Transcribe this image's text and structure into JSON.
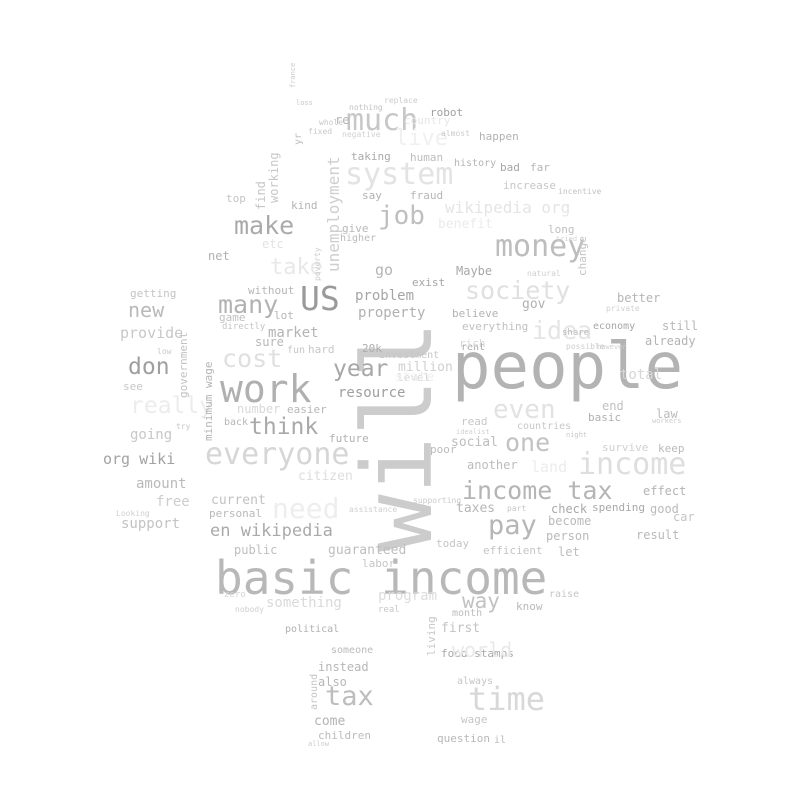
{
  "wordcloud": {
    "words": [
      {
        "text": "will",
        "color": "#cccccc"
      },
      {
        "text": "people",
        "color": "#b3b3b3"
      },
      {
        "text": "basic income",
        "color": "#b8b8b8"
      },
      {
        "text": "work",
        "color": "#b0b0b0"
      },
      {
        "text": "everyone",
        "color": "#d6d6d6"
      },
      {
        "text": "money",
        "color": "#bdbdbd"
      },
      {
        "text": "income tax",
        "color": "#b5b5b5"
      },
      {
        "text": "income",
        "color": "#dedede"
      },
      {
        "text": "US",
        "color": "#9a9a9a"
      },
      {
        "text": "time",
        "color": "#d8d8d8"
      },
      {
        "text": "much",
        "color": "#c7c7c7"
      },
      {
        "text": "system",
        "color": "#e3e3e3"
      },
      {
        "text": "job",
        "color": "#bfbfbf"
      },
      {
        "text": "make",
        "color": "#aaaaaa"
      },
      {
        "text": "many",
        "color": "#b2b2b2"
      },
      {
        "text": "don",
        "color": "#9f9f9f"
      },
      {
        "text": "cost",
        "color": "#e0e0e0"
      },
      {
        "text": "think",
        "color": "#a9a9a9"
      },
      {
        "text": "society",
        "color": "#e0e0e0"
      },
      {
        "text": "idea",
        "color": "#e5e5e5"
      },
      {
        "text": "one",
        "color": "#c2c2c2"
      },
      {
        "text": "even",
        "color": "#e2e2e2"
      },
      {
        "text": "pay",
        "color": "#b6b6b6"
      },
      {
        "text": "year",
        "color": "#a7a7a7"
      },
      {
        "text": "tax",
        "color": "#bdbdbd"
      },
      {
        "text": "need",
        "color": "#eeeeee"
      },
      {
        "text": "really",
        "color": "#ececec"
      },
      {
        "text": "new",
        "color": "#b9b9b9"
      },
      {
        "text": "take",
        "color": "#e8e8e8"
      },
      {
        "text": "en wikipedia",
        "color": "#aaaaaa"
      },
      {
        "text": "way",
        "color": "#c2c2c2"
      },
      {
        "text": "wikipedia org",
        "color": "#e5e5e5"
      },
      {
        "text": "unemployment",
        "color": "#cfcfcf"
      },
      {
        "text": "live",
        "color": "#f0f0f0"
      },
      {
        "text": "problem",
        "color": "#a5a5a5"
      },
      {
        "text": "property",
        "color": "#b0b0b0"
      },
      {
        "text": "market",
        "color": "#b4b4b4"
      },
      {
        "text": "resource",
        "color": "#9f9f9f"
      },
      {
        "text": "org wiki",
        "color": "#a3a3a3"
      },
      {
        "text": "provide",
        "color": "#c8c8c8"
      },
      {
        "text": "going",
        "color": "#c7c7c7"
      },
      {
        "text": "amount",
        "color": "#bababa"
      },
      {
        "text": "free",
        "color": "#cdcdcd"
      },
      {
        "text": "support",
        "color": "#c3c3c3"
      },
      {
        "text": "current",
        "color": "#c2c2c2"
      },
      {
        "text": "personal",
        "color": "#b9b9b9"
      },
      {
        "text": "public",
        "color": "#bebebe"
      },
      {
        "text": "guaranteed",
        "color": "#bebebe"
      },
      {
        "text": "labor",
        "color": "#c6c6c6"
      },
      {
        "text": "something",
        "color": "#dadada"
      },
      {
        "text": "program",
        "color": "#dcdcdc"
      },
      {
        "text": "citizen",
        "color": "#dddddd"
      },
      {
        "text": "social",
        "color": "#bdbdbd"
      },
      {
        "text": "another",
        "color": "#bcbcbc"
      },
      {
        "text": "taxes",
        "color": "#b6b6b6"
      },
      {
        "text": "today",
        "color": "#c6c6c6"
      },
      {
        "text": "efficient",
        "color": "#c5c5c5"
      },
      {
        "text": "let",
        "color": "#bdbdbd"
      },
      {
        "text": "person",
        "color": "#b9b9b9"
      },
      {
        "text": "become",
        "color": "#bababa"
      },
      {
        "text": "check",
        "color": "#a9a9a9"
      },
      {
        "text": "spending",
        "color": "#a8a8a8"
      },
      {
        "text": "good",
        "color": "#bbbbbb"
      },
      {
        "text": "effect",
        "color": "#b4b4b4"
      },
      {
        "text": "car",
        "color": "#c5c5c5"
      },
      {
        "text": "result",
        "color": "#b9b9b9"
      },
      {
        "text": "basic",
        "color": "#b0b0b0"
      },
      {
        "text": "end",
        "color": "#c0c0c0"
      },
      {
        "text": "law",
        "color": "#bcbcbc"
      },
      {
        "text": "survive",
        "color": "#d0d0d0"
      },
      {
        "text": "keep",
        "color": "#bababa"
      },
      {
        "text": "already",
        "color": "#b3b3b3"
      },
      {
        "text": "still",
        "color": "#b8b8b8"
      },
      {
        "text": "better",
        "color": "#b5b5b5"
      },
      {
        "text": "economy",
        "color": "#a7a7a7"
      },
      {
        "text": "gov",
        "color": "#b0b0b0"
      },
      {
        "text": "believe",
        "color": "#b3b3b3"
      },
      {
        "text": "everything",
        "color": "#c1c1c1"
      },
      {
        "text": "rent",
        "color": "#a9a9a9"
      },
      {
        "text": "Maybe",
        "color": "#a8a8a8"
      },
      {
        "text": "exist",
        "color": "#a6a6a6"
      },
      {
        "text": "million",
        "color": "#d0d0d0"
      },
      {
        "text": "investment",
        "color": "#c6c6c6"
      },
      {
        "text": "20k",
        "color": "#adadad"
      },
      {
        "text": "level",
        "color": "#d5d5d5"
      },
      {
        "text": "read",
        "color": "#c7c7c7"
      },
      {
        "text": "poor",
        "color": "#bcbcbc"
      },
      {
        "text": "future",
        "color": "#b1b1b1"
      },
      {
        "text": "easier",
        "color": "#b7b7b7"
      },
      {
        "text": "hard",
        "color": "#c8c8c8"
      },
      {
        "text": "fun",
        "color": "#c7c7c7"
      },
      {
        "text": "sure",
        "color": "#b7b7b7"
      },
      {
        "text": "lot",
        "color": "#b5b5b5"
      },
      {
        "text": "without",
        "color": "#b6b6b6"
      },
      {
        "text": "game",
        "color": "#c0c0c0"
      },
      {
        "text": "net",
        "color": "#b1b1b1"
      },
      {
        "text": "give",
        "color": "#b8b8b8"
      },
      {
        "text": "higher",
        "color": "#bbbbbb"
      },
      {
        "text": "kind",
        "color": "#b4b4b4"
      },
      {
        "text": "find",
        "color": "#c6c6c6"
      },
      {
        "text": "working",
        "color": "#c8c8c8"
      },
      {
        "text": "top",
        "color": "#c4c4c4"
      },
      {
        "text": "etc",
        "color": "#e3e3e3"
      },
      {
        "text": "say",
        "color": "#b1b1b1"
      },
      {
        "text": "fraud",
        "color": "#b6b6b6"
      },
      {
        "text": "human",
        "color": "#bcbcbc"
      },
      {
        "text": "taking",
        "color": "#aaaaaa"
      },
      {
        "text": "history",
        "color": "#b4b4b4"
      },
      {
        "text": "bad",
        "color": "#a6a6a6"
      },
      {
        "text": "far",
        "color": "#b6b6b6"
      },
      {
        "text": "increase",
        "color": "#c7c7c7"
      },
      {
        "text": "long",
        "color": "#bfbfbf"
      },
      {
        "text": "happen",
        "color": "#b2b2b2"
      },
      {
        "text": "robot",
        "color": "#a1a1a1"
      },
      {
        "text": "re",
        "color": "#b5b5b5"
      },
      {
        "text": "go",
        "color": "#b5b5b5"
      },
      {
        "text": "change",
        "color": "#c3c3c3"
      },
      {
        "text": "getting",
        "color": "#c3c3c3"
      },
      {
        "text": "see",
        "color": "#c6c6c6"
      },
      {
        "text": "government",
        "color": "#c2c2c2"
      },
      {
        "text": "minimum wage",
        "color": "#b4b4b4"
      },
      {
        "text": "number",
        "color": "#d8d8d8"
      },
      {
        "text": "back",
        "color": "#b7b7b7"
      },
      {
        "text": "political",
        "color": "#b0b0b0"
      },
      {
        "text": "someone",
        "color": "#bababa"
      },
      {
        "text": "instead",
        "color": "#b7b7b7"
      },
      {
        "text": "also",
        "color": "#b6b6b6"
      },
      {
        "text": "come",
        "color": "#b3b3b3"
      },
      {
        "text": "children",
        "color": "#bcbcbc"
      },
      {
        "text": "around",
        "color": "#c5c5c5"
      },
      {
        "text": "question",
        "color": "#b8b8b8"
      },
      {
        "text": "living",
        "color": "#c7c7c7"
      },
      {
        "text": "first",
        "color": "#c3c3c3"
      },
      {
        "text": "food stamps",
        "color": "#a8a8a8"
      },
      {
        "text": "always",
        "color": "#c5c5c5"
      },
      {
        "text": "wage",
        "color": "#c6c6c6"
      },
      {
        "text": "month",
        "color": "#bdbdbd"
      },
      {
        "text": "real",
        "color": "#c8c8c8"
      },
      {
        "text": "know",
        "color": "#b9b9b9"
      },
      {
        "text": "raise",
        "color": "#c6c6c6"
      },
      {
        "text": "world",
        "color": "#e9e9e9"
      },
      {
        "text": "country",
        "color": "#e6e6e6"
      },
      {
        "text": "total",
        "color": "#d6d6d6"
      },
      {
        "text": "land",
        "color": "#ececec"
      },
      {
        "text": "countries",
        "color": "#c8c8c8"
      },
      {
        "text": "state",
        "color": "#eeeeee"
      },
      {
        "text": "benefit",
        "color": "#ebebeb"
      },
      {
        "text": "share",
        "color": "#bdbdbd"
      },
      {
        "text": "incentive",
        "color": "#c3c3c3"
      },
      {
        "text": "tried",
        "color": "#d3d3d3"
      },
      {
        "text": "nothing",
        "color": "#c3c3c3"
      },
      {
        "text": "replace",
        "color": "#cccccc"
      },
      {
        "text": "negative",
        "color": "#d0d0d0"
      },
      {
        "text": "fixed",
        "color": "#c8c8c8"
      },
      {
        "text": "almost",
        "color": "#cbcbcb"
      },
      {
        "text": "yr",
        "color": "#bdbdbd"
      },
      {
        "text": "poverty",
        "color": "#cccccc"
      },
      {
        "text": "whole",
        "color": "#c9c9c9"
      },
      {
        "text": "directly",
        "color": "#c5c5c5"
      },
      {
        "text": "low",
        "color": "#c9c9c9"
      },
      {
        "text": "try",
        "color": "#c6c6c6"
      },
      {
        "text": "workers",
        "color": "#cccccc"
      },
      {
        "text": "private",
        "color": "#d1d1d1"
      },
      {
        "text": "night",
        "color": "#c9c9c9"
      },
      {
        "text": "supporting",
        "color": "#cacaca"
      },
      {
        "text": "assistance",
        "color": "#cfcfcf"
      },
      {
        "text": "part",
        "color": "#c6c6c6"
      },
      {
        "text": "nobody",
        "color": "#cfcfcf"
      },
      {
        "text": "zero",
        "color": "#d4d4d4"
      },
      {
        "text": "Looking",
        "color": "#cfcfcf"
      },
      {
        "text": "allow",
        "color": "#cbcbcb"
      },
      {
        "text": "il",
        "color": "#bbbbbb"
      },
      {
        "text": "idealist",
        "color": "#d1d1d1"
      },
      {
        "text": "france",
        "color": "#cccccc"
      },
      {
        "text": "loss",
        "color": "#c9c9c9"
      },
      {
        "text": "rich",
        "color": "#d6d6d6"
      },
      {
        "text": "possible",
        "color": "#cdcdcd"
      },
      {
        "text": "however",
        "color": "#d0d0d0"
      },
      {
        "text": "natural",
        "color": "#cfcfcf"
      }
    ]
  }
}
